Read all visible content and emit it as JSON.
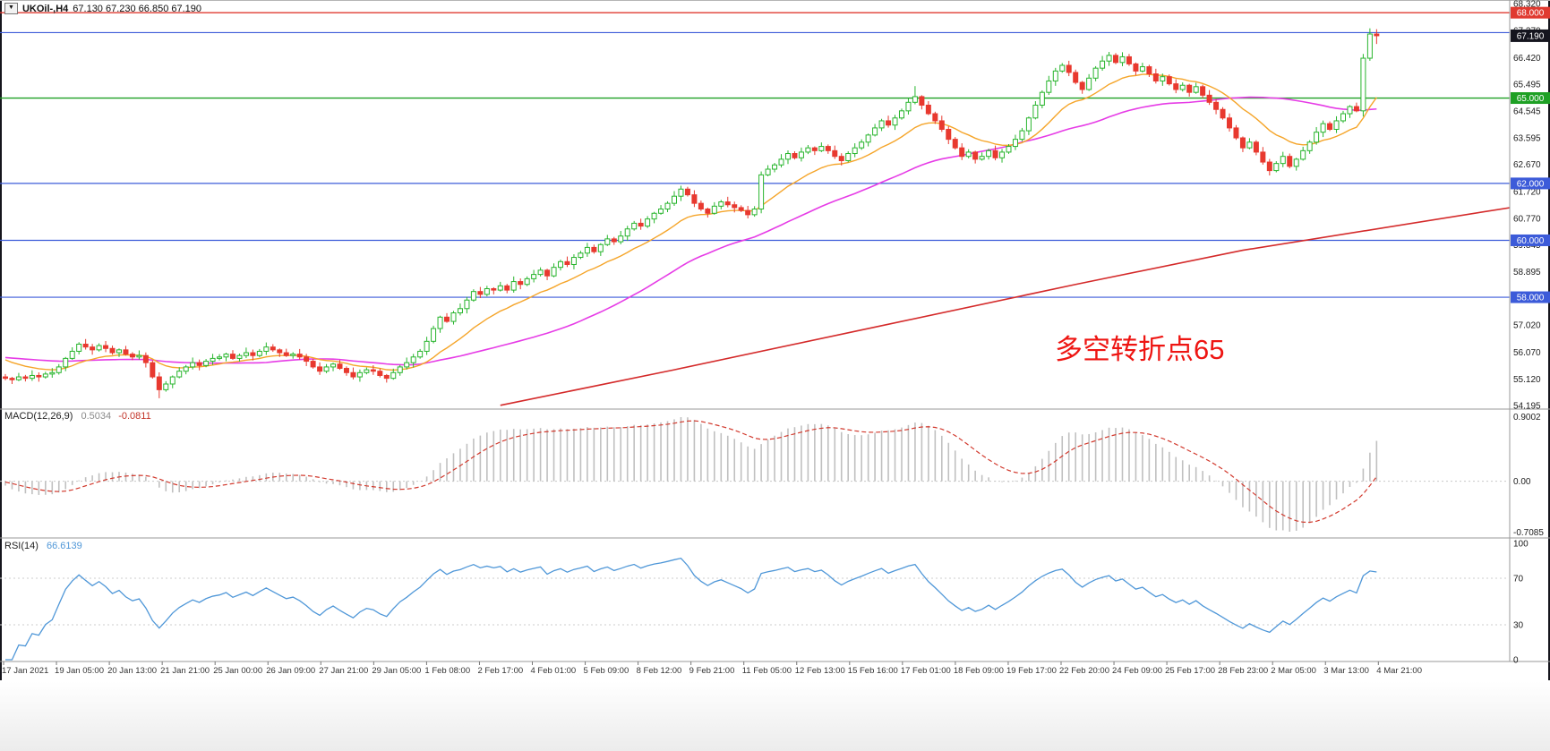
{
  "window": {
    "bg": "#ffffff",
    "border_color": "#15151c"
  },
  "header": {
    "dropdown_icon": "▼",
    "title": "UKOil-,H4",
    "ohlc": "67.130 67.230 66.850 67.190"
  },
  "annotation": {
    "text": "多空转折点65",
    "color": "#ee1512"
  },
  "chart_data": {
    "type": "candlestick",
    "symbol": "UKOil-",
    "timeframe": "H4",
    "ohlc_readout": {
      "open": "67.130",
      "high": "67.230",
      "low": "66.850",
      "close": "67.190"
    },
    "price_axis": {
      "max": 68.32,
      "min": 54.195,
      "labels": [
        "68.320",
        "67.370",
        "66.420",
        "65.495",
        "64.545",
        "63.595",
        "62.670",
        "61.720",
        "60.770",
        "59.845",
        "58.895",
        "57.970",
        "57.020",
        "56.070",
        "55.120",
        "54.195"
      ]
    },
    "levels": [
      {
        "price": 68.0,
        "color": "#e03a30",
        "label": "68.000",
        "width": 1.4
      },
      {
        "price": 67.3,
        "color": "#3c5bd9",
        "label": null,
        "width": 1.1
      },
      {
        "price": 65.0,
        "color": "#1ea024",
        "label": "65.000",
        "width": 1.4
      },
      {
        "price": 62.0,
        "color": "#3c5bd9",
        "label": "62.000",
        "width": 1.2
      },
      {
        "price": 60.0,
        "color": "#3c5bd9",
        "label": "60.000",
        "width": 1.2
      },
      {
        "price": 58.0,
        "color": "#3c5bd9",
        "label": "58.000",
        "width": 1.2
      }
    ],
    "current_price": {
      "value": 67.19,
      "label": "67.190",
      "box_color": "#15151e"
    },
    "candle_up_color": "#28b52d",
    "candle_down_color": "#e8392f",
    "first_open": 55.2,
    "closes": [
      55.15,
      55.1,
      55.2,
      55.15,
      55.25,
      55.2,
      55.3,
      55.35,
      55.55,
      55.85,
      56.1,
      56.35,
      56.25,
      56.15,
      56.3,
      56.2,
      56.05,
      56.15,
      56.0,
      55.9,
      55.95,
      55.7,
      55.2,
      54.75,
      54.95,
      55.2,
      55.4,
      55.55,
      55.7,
      55.6,
      55.75,
      55.85,
      55.9,
      56.0,
      55.85,
      55.95,
      56.05,
      55.95,
      56.1,
      56.25,
      56.15,
      56.05,
      55.95,
      56.0,
      55.9,
      55.75,
      55.55,
      55.4,
      55.55,
      55.65,
      55.5,
      55.35,
      55.2,
      55.35,
      55.45,
      55.4,
      55.25,
      55.15,
      55.35,
      55.55,
      55.7,
      55.9,
      56.1,
      56.45,
      56.9,
      57.3,
      57.15,
      57.45,
      57.6,
      57.9,
      58.2,
      58.1,
      58.3,
      58.25,
      58.4,
      58.25,
      58.55,
      58.45,
      58.65,
      58.8,
      58.95,
      58.75,
      59.05,
      59.25,
      59.15,
      59.4,
      59.55,
      59.75,
      59.6,
      59.85,
      60.05,
      59.95,
      60.15,
      60.4,
      60.6,
      60.5,
      60.75,
      60.95,
      61.1,
      61.3,
      61.55,
      61.8,
      61.6,
      61.3,
      61.1,
      60.95,
      61.2,
      61.35,
      61.25,
      61.15,
      61.05,
      60.9,
      61.1,
      62.3,
      62.5,
      62.65,
      62.85,
      63.05,
      62.9,
      63.1,
      63.25,
      63.15,
      63.3,
      63.15,
      62.95,
      62.8,
      63.05,
      63.25,
      63.45,
      63.7,
      63.95,
      64.2,
      64.05,
      64.3,
      64.55,
      64.85,
      65.05,
      64.75,
      64.45,
      64.2,
      63.9,
      63.55,
      63.25,
      62.95,
      63.1,
      62.85,
      62.95,
      63.15,
      62.9,
      63.1,
      63.3,
      63.55,
      63.85,
      64.3,
      64.75,
      65.2,
      65.6,
      65.95,
      66.15,
      65.9,
      65.55,
      65.3,
      65.7,
      66.05,
      66.3,
      66.5,
      66.25,
      66.45,
      66.2,
      65.95,
      66.1,
      65.85,
      65.6,
      65.75,
      65.5,
      65.3,
      65.45,
      65.2,
      65.4,
      65.1,
      64.85,
      64.6,
      64.3,
      63.95,
      63.6,
      63.25,
      63.45,
      63.1,
      62.75,
      62.45,
      62.7,
      62.95,
      62.6,
      62.85,
      63.15,
      63.45,
      63.8,
      64.1,
      63.9,
      64.2,
      64.45,
      64.7,
      64.55,
      66.4,
      67.25,
      67.19
    ],
    "wick_up_pattern": [
      0.1,
      0.05,
      0.14,
      0.07,
      0.18,
      0.11,
      0.08,
      0.16
    ],
    "wick_dn_pattern": [
      0.07,
      0.15,
      0.05,
      0.11,
      0.09,
      0.17,
      0.06,
      0.13
    ],
    "overrides": {
      "23": {
        "low": 54.45
      },
      "101": {
        "high": 61.92
      },
      "113": {
        "low": 60.95,
        "high": 62.42
      },
      "136": {
        "high": 65.42
      },
      "165": {
        "high": 66.62
      },
      "203": {
        "low": 64.35,
        "high": 66.55
      },
      "204": {
        "high": 67.45
      },
      "205": {
        "low": 66.9,
        "high": 67.42
      }
    },
    "history_pad": {
      "value": 55.9,
      "count": 40
    },
    "ma": {
      "fast": {
        "type": "ema",
        "period": 14,
        "color": "#f5a52a"
      },
      "mid": {
        "type": "sma",
        "period": 40,
        "color": "#e63ce6"
      },
      "slow": {
        "type": "trendline",
        "color": "#d42a2a",
        "points": [
          [
            74,
            54.2
          ],
          [
            100,
            55.45
          ],
          [
            130,
            56.95
          ],
          [
            160,
            58.45
          ],
          [
            185,
            59.65
          ],
          [
            225,
            61.15
          ]
        ]
      }
    },
    "macd": {
      "label": "MACD(12,26,9)",
      "main_value": "0.5034",
      "signal_value": "-0.0811",
      "fast": 12,
      "slow": 26,
      "signal": 9,
      "axis": [
        "0.9002",
        "0.00",
        "-0.7085"
      ],
      "hist_color": "#c0c0c0",
      "signal_color": "#d23a2e"
    },
    "rsi": {
      "label": "RSI(14)",
      "value": "66.6139",
      "period": 14,
      "levels": [
        100,
        70,
        30,
        0
      ],
      "color": "#4f97d8"
    },
    "time_axis": [
      "17 Jan 2021",
      "19 Jan 05:00",
      "20 Jan 13:00",
      "21 Jan 21:00",
      "25 Jan 00:00",
      "26 Jan 09:00",
      "27 Jan 21:00",
      "29 Jan 05:00",
      "1 Feb 08:00",
      "2 Feb 17:00",
      "4 Feb 01:00",
      "5 Feb 09:00",
      "8 Feb 12:00",
      "9 Feb 21:00",
      "11 Feb 05:00",
      "12 Feb 13:00",
      "15 Feb 16:00",
      "17 Feb 01:00",
      "18 Feb 09:00",
      "19 Feb 17:00",
      "22 Feb 20:00",
      "24 Feb 09:00",
      "25 Feb 17:00",
      "28 Feb 23:00",
      "2 Mar 05:00",
      "3 Mar 13:00",
      "4 Mar 21:00"
    ]
  }
}
